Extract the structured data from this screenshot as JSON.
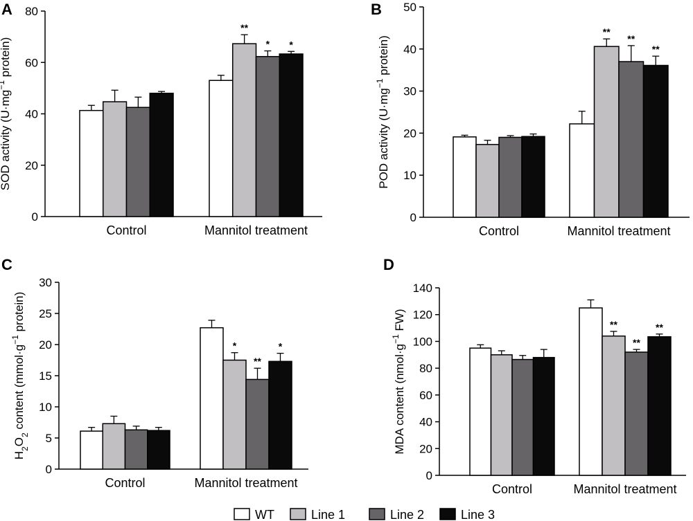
{
  "colors": {
    "wt": "#ffffff",
    "line1": "#c2bfc2",
    "line2": "#676468",
    "line3": "#0a0a0a",
    "axis": "#000000"
  },
  "legend": {
    "items": [
      {
        "label": "WT",
        "color": "#ffffff"
      },
      {
        "label": "Line 1",
        "color": "#c2bfc2"
      },
      {
        "label": "Line 2",
        "color": "#676468"
      },
      {
        "label": "Line 3",
        "color": "#0a0a0a"
      }
    ]
  },
  "chart_data": [
    {
      "panel": "A",
      "type": "bar",
      "categories": [
        "Control",
        "Mannitol treatment"
      ],
      "ylabel_parts": [
        {
          "t": "SOD activity (U·mg"
        },
        {
          "t": "−1",
          "sup": true
        },
        {
          "t": " protein)"
        }
      ],
      "ylim": [
        0,
        80
      ],
      "yticks": [
        0,
        20,
        40,
        60,
        80
      ],
      "series": [
        {
          "name": "WT",
          "values": [
            41.3,
            53.0
          ],
          "errors": [
            2.0,
            2.0
          ],
          "sig": [
            "",
            ""
          ]
        },
        {
          "name": "Line 1",
          "values": [
            44.7,
            67.3
          ],
          "errors": [
            4.5,
            3.5
          ],
          "sig": [
            "",
            "**"
          ]
        },
        {
          "name": "Line 2",
          "values": [
            42.5,
            62.3
          ],
          "errors": [
            4.0,
            2.2
          ],
          "sig": [
            "",
            "*"
          ]
        },
        {
          "name": "Line 3",
          "values": [
            48.0,
            63.3
          ],
          "errors": [
            0.7,
            1.0
          ],
          "sig": [
            "",
            "*"
          ]
        }
      ]
    },
    {
      "panel": "B",
      "type": "bar",
      "categories": [
        "Control",
        "Mannitol treatment"
      ],
      "ylabel_parts": [
        {
          "t": "POD activity (U·mg"
        },
        {
          "t": "−1",
          "sup": true
        },
        {
          "t": " protein)"
        }
      ],
      "ylim": [
        0,
        50
      ],
      "yticks": [
        0,
        10,
        20,
        30,
        40,
        50
      ],
      "series": [
        {
          "name": "WT",
          "values": [
            19.1,
            22.2
          ],
          "errors": [
            0.4,
            3.0
          ],
          "sig": [
            "",
            ""
          ]
        },
        {
          "name": "Line 1",
          "values": [
            17.3,
            40.6
          ],
          "errors": [
            1.0,
            1.8
          ],
          "sig": [
            "",
            "**"
          ]
        },
        {
          "name": "Line 2",
          "values": [
            19.0,
            37.0
          ],
          "errors": [
            0.4,
            3.8
          ],
          "sig": [
            "",
            "**"
          ]
        },
        {
          "name": "Line 3",
          "values": [
            19.2,
            36.1
          ],
          "errors": [
            0.6,
            2.2
          ],
          "sig": [
            "",
            "**"
          ]
        }
      ]
    },
    {
      "panel": "C",
      "type": "bar",
      "categories": [
        "Control",
        "Mannitol treatment"
      ],
      "ylabel_parts": [
        {
          "t": "H"
        },
        {
          "t": "2",
          "sub": true
        },
        {
          "t": "O"
        },
        {
          "t": "2",
          "sub": true
        },
        {
          "t": " content (mmol·g"
        },
        {
          "t": "−1",
          "sup": true
        },
        {
          "t": " protein)"
        }
      ],
      "ylim": [
        0,
        30
      ],
      "yticks": [
        0,
        5,
        10,
        15,
        20,
        25,
        30
      ],
      "series": [
        {
          "name": "WT",
          "values": [
            6.1,
            22.7
          ],
          "errors": [
            0.6,
            1.2
          ],
          "sig": [
            "",
            ""
          ]
        },
        {
          "name": "Line 1",
          "values": [
            7.3,
            17.5
          ],
          "errors": [
            1.2,
            1.2
          ],
          "sig": [
            "",
            "*"
          ]
        },
        {
          "name": "Line 2",
          "values": [
            6.3,
            14.4
          ],
          "errors": [
            0.6,
            1.8
          ],
          "sig": [
            "",
            "**"
          ]
        },
        {
          "name": "Line 3",
          "values": [
            6.2,
            17.3
          ],
          "errors": [
            0.5,
            1.3
          ],
          "sig": [
            "",
            "*"
          ]
        }
      ]
    },
    {
      "panel": "D",
      "type": "bar",
      "categories": [
        "Control",
        "Mannitol treatment"
      ],
      "ylabel_parts": [
        {
          "t": "MDA content (nmol·g"
        },
        {
          "t": "−1",
          "sup": true
        },
        {
          "t": " FW)"
        }
      ],
      "ylim": [
        0,
        140
      ],
      "yticks": [
        0,
        20,
        40,
        60,
        80,
        100,
        120,
        140
      ],
      "series": [
        {
          "name": "WT",
          "values": [
            95.0,
            125.0
          ],
          "errors": [
            2.5,
            6.0
          ],
          "sig": [
            "",
            ""
          ]
        },
        {
          "name": "Line 1",
          "values": [
            90.0,
            104.0
          ],
          "errors": [
            3.0,
            3.5
          ],
          "sig": [
            "",
            "**"
          ]
        },
        {
          "name": "Line 2",
          "values": [
            86.5,
            92.0
          ],
          "errors": [
            3.0,
            2.0
          ],
          "sig": [
            "",
            "**"
          ]
        },
        {
          "name": "Line 3",
          "values": [
            88.0,
            103.5
          ],
          "errors": [
            6.0,
            2.0
          ],
          "sig": [
            "",
            "**"
          ]
        }
      ]
    }
  ]
}
